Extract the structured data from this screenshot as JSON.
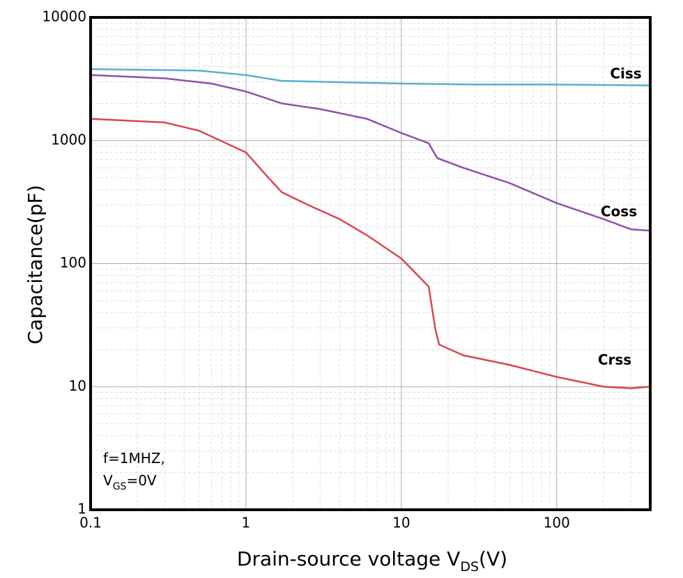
{
  "chart_data": {
    "type": "line",
    "x_label": {
      "text": "Drain-source voltage V",
      "sub": "DS",
      "suffix": "(V)"
    },
    "y_label": "Capacitance(pF)",
    "annotation": {
      "line1": "f=1MHZ,",
      "line2": {
        "text": "V",
        "sub": "GS",
        "suffix": "=0V"
      }
    },
    "log_x": true,
    "log_y": true,
    "grid": true,
    "minor_grid": true,
    "xlim": [
      0.1,
      400
    ],
    "ylim": [
      1,
      10000
    ],
    "xticks": [
      0.1,
      1,
      10,
      100
    ],
    "yticks": [
      1,
      10,
      100,
      1000,
      10000
    ],
    "series": [
      {
        "name": "Ciss",
        "color": "#5aaed0",
        "x": [
          0.1,
          0.5,
          1,
          1.7,
          3,
          10,
          30,
          100,
          400
        ],
        "values": [
          3800,
          3700,
          3400,
          3050,
          3000,
          2900,
          2850,
          2850,
          2800
        ]
      },
      {
        "name": "Coss",
        "color": "#9150a8",
        "x": [
          0.1,
          0.3,
          0.6,
          1,
          1.7,
          3,
          6,
          10,
          15,
          17,
          25,
          50,
          100,
          200,
          300,
          400
        ],
        "values": [
          3400,
          3200,
          2900,
          2500,
          2000,
          1800,
          1500,
          1150,
          950,
          720,
          600,
          450,
          310,
          230,
          190,
          185
        ]
      },
      {
        "name": "Crss",
        "color": "#d9464f",
        "x": [
          0.1,
          0.3,
          0.5,
          1,
          1.3,
          1.7,
          2.5,
          4,
          6,
          10,
          15,
          16.5,
          17.5,
          25,
          50,
          100,
          200,
          300,
          400
        ],
        "values": [
          1500,
          1400,
          1200,
          800,
          550,
          380,
          300,
          230,
          170,
          110,
          65,
          30,
          22,
          18,
          15,
          12,
          10,
          9.7,
          10
        ]
      }
    ]
  }
}
